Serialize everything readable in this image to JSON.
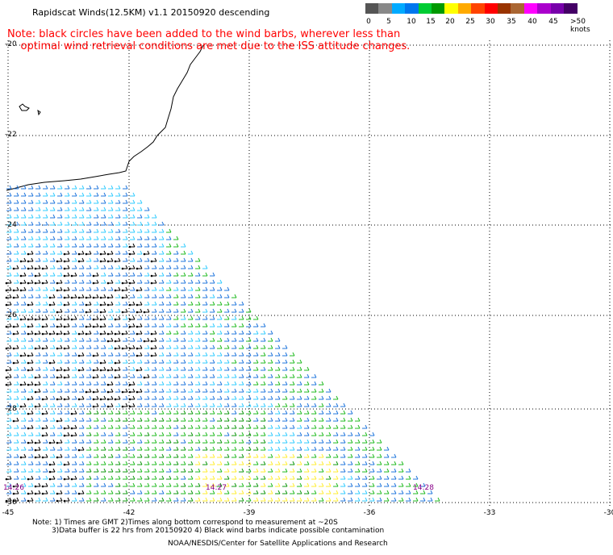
{
  "title": "Rapidscat Winds(12.5KM) v1.1 20150920 descending",
  "note_line1": "Note: black circles have been added to the wind barbs, wherever less than",
  "note_line2": "optimal wind retrieval conditions are met due to the ISS attitude changes.",
  "legend": {
    "colors": [
      "#555555",
      "#888888",
      "#00aaff",
      "#0077ee",
      "#00cc33",
      "#009900",
      "#ffff00",
      "#ffaa00",
      "#ff4400",
      "#ff0000",
      "#993300",
      "#aa6633",
      "#ff00ff",
      "#aa00cc",
      "#7700aa",
      "#440066"
    ],
    "labels": [
      "0",
      "5",
      "10",
      "15",
      "20",
      "25",
      "30",
      "35",
      "40",
      "45",
      ">50 knots"
    ]
  },
  "lat_labels": [
    "-20",
    "-22",
    "-24",
    "-26",
    "-28",
    "-30"
  ],
  "lon_labels": [
    "-45",
    "-42",
    "-39",
    "-36",
    "-33",
    "-30"
  ],
  "time_labels": [
    "14:26",
    "14:27",
    "14:28"
  ],
  "footer": {
    "line1": "Note: 1) Times are GMT 2)Times along bottom correspond to measurement at ~20S",
    "line2": "3)Data buffer is 22 hrs from 20150920 4) Black wind barbs indicate possible contamination",
    "line3": "NOAA/NESDIS/Center for Satellite Applications and Research"
  }
}
